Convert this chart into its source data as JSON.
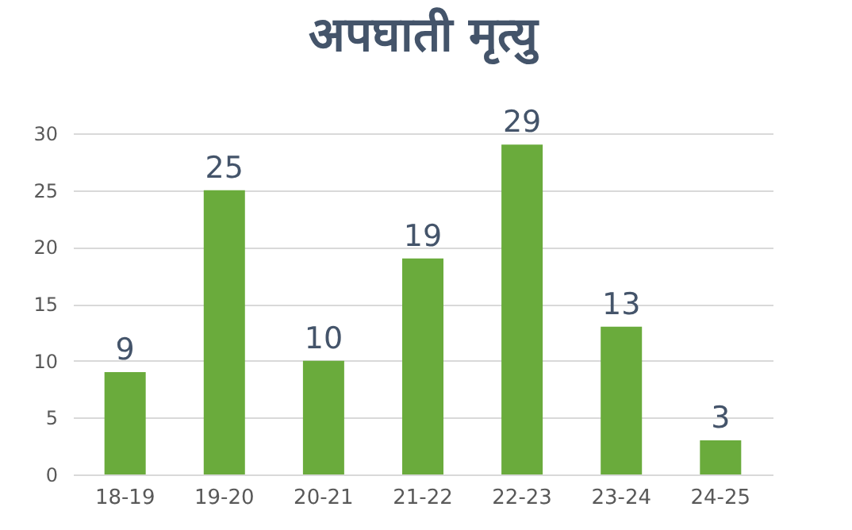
{
  "chart_data": {
    "type": "bar",
    "title": "अपघाती मृत्यु",
    "categories": [
      "18-19",
      "19-20",
      "20-21",
      "21-22",
      "22-23",
      "23-24",
      "24-25"
    ],
    "values": [
      9,
      25,
      10,
      19,
      29,
      13,
      3
    ],
    "color": "#6aab3c",
    "ylim": [
      0,
      30
    ],
    "yticks": [
      0,
      5,
      10,
      15,
      20,
      25,
      30
    ],
    "grid": "y",
    "data_labels": true
  }
}
